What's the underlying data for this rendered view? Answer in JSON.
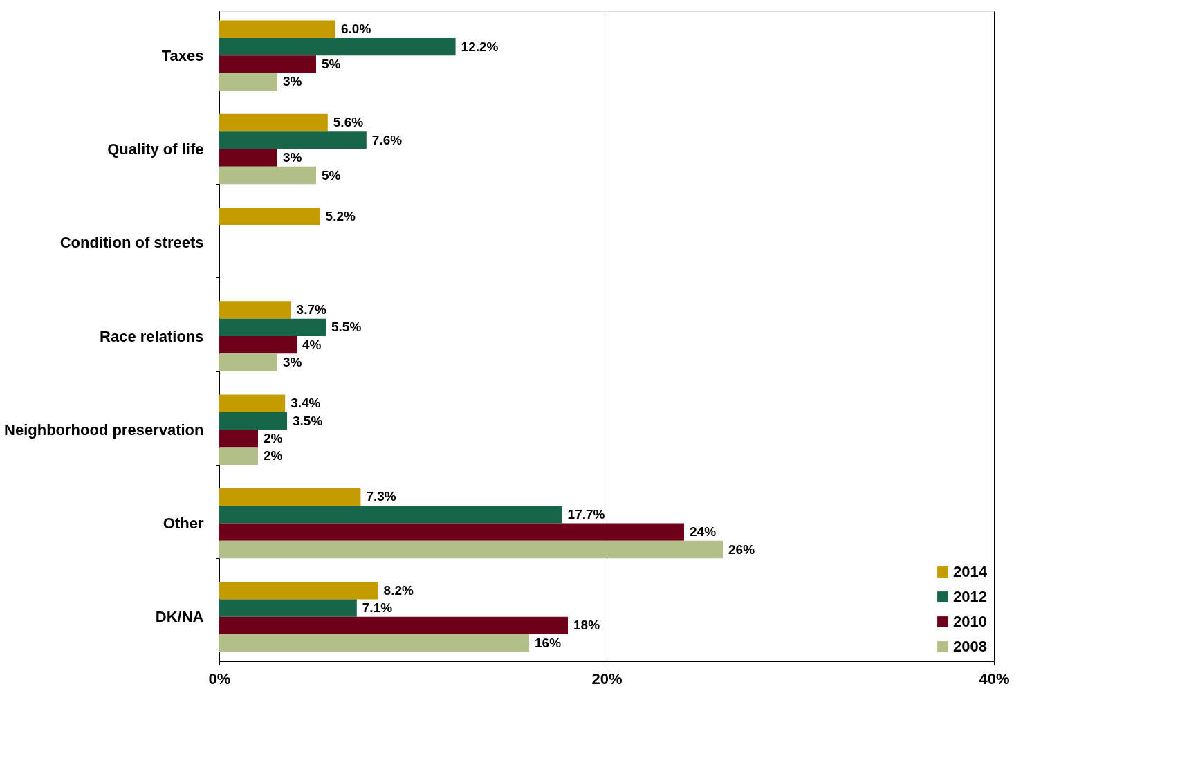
{
  "chart_data": {
    "type": "bar",
    "orientation": "horizontal",
    "categories": [
      "Taxes",
      "Quality of life",
      "Condition of streets",
      "Race relations",
      "Neighborhood preservation",
      "Other",
      "DK/NA"
    ],
    "series": [
      {
        "name": "2014",
        "color": "#c49c00",
        "values": [
          6.0,
          5.6,
          5.2,
          3.7,
          3.4,
          7.3,
          8.2
        ],
        "value_labels": [
          "6.0%",
          "5.6%",
          "5.2%",
          "3.7%",
          "3.4%",
          "7.3%",
          "8.2%"
        ]
      },
      {
        "name": "2012",
        "color": "#17664a",
        "values": [
          12.2,
          7.6,
          null,
          5.5,
          3.5,
          17.7,
          7.1
        ],
        "value_labels": [
          "12.2%",
          "7.6%",
          null,
          "5.5%",
          "3.5%",
          "17.7%",
          "7.1%"
        ]
      },
      {
        "name": "2010",
        "color": "#6e0019",
        "values": [
          5,
          3,
          null,
          4,
          2,
          24,
          18
        ],
        "value_labels": [
          "5%",
          "3%",
          null,
          "4%",
          "2%",
          "24%",
          "18%"
        ]
      },
      {
        "name": "2008",
        "color": "#b3bf88",
        "values": [
          3,
          5,
          null,
          3,
          2,
          26,
          16
        ],
        "value_labels": [
          "3%",
          "5%",
          null,
          "3%",
          "2%",
          "26%",
          "16%"
        ]
      }
    ],
    "xlim": [
      0,
      40
    ],
    "xticks": [
      {
        "value": 0,
        "label": "0%"
      },
      {
        "value": 20,
        "label": "20%"
      },
      {
        "value": 40,
        "label": "40%"
      }
    ],
    "grid": "x",
    "legend": "bottom right"
  }
}
